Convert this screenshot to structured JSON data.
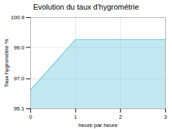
{
  "chart_data": {
    "type": "area",
    "title": "Evolution du taux d'hygrométrie",
    "xlabel": "heure par heure",
    "ylabel": "Taux hygrométrie %",
    "x": [
      0,
      1,
      3
    ],
    "values": [
      96.3,
      99.5,
      99.5
    ],
    "color": "#7dcde0",
    "xlim": [
      0,
      3
    ],
    "xticks": [
      0,
      1,
      2,
      3
    ],
    "ylim": [
      95.1,
      100.9
    ],
    "yticks": [
      95.1,
      {
        "value": 97.0,
        "label": "97.0"
      },
      {
        "value": 99.0,
        "label": "99.0"
      },
      100.9
    ],
    "grid": true
  }
}
